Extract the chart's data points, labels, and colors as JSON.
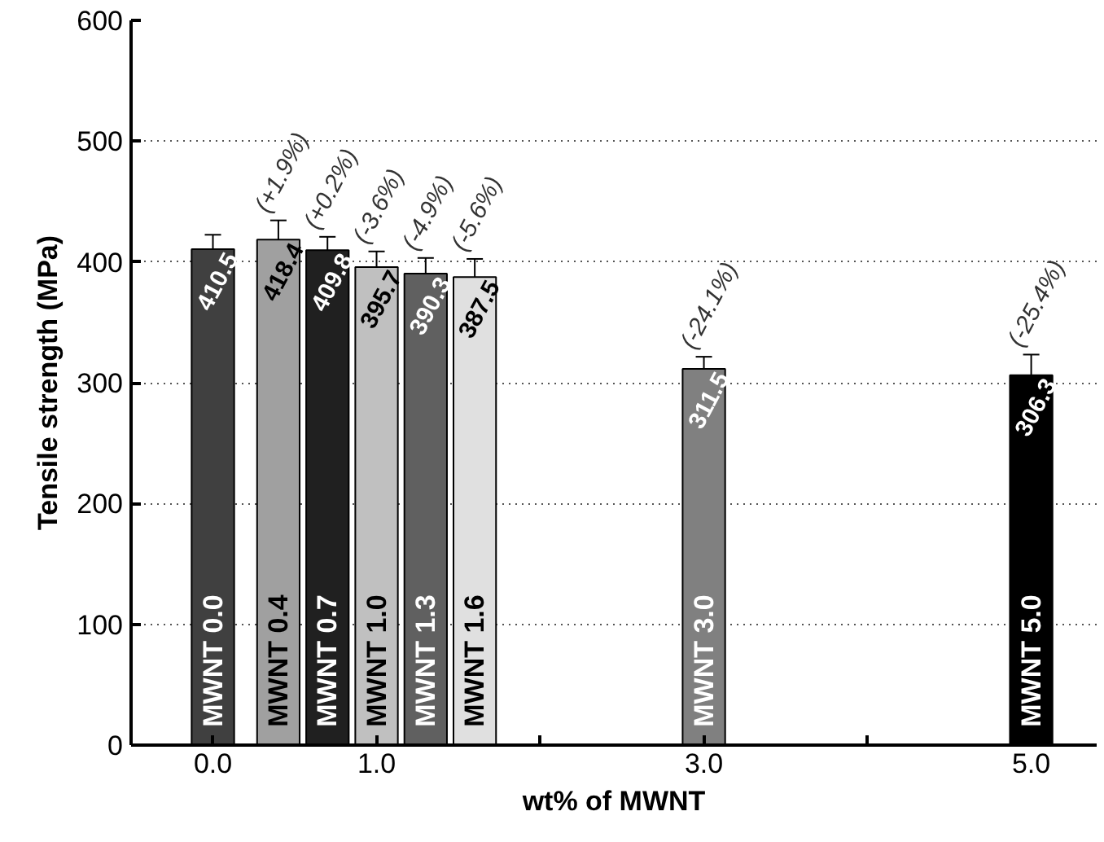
{
  "chart_data": {
    "type": "bar",
    "xlabel": "wt% of MWNT",
    "ylabel": "Tensile strength (MPa)",
    "x": [
      0.0,
      0.4,
      0.7,
      1.0,
      1.3,
      1.6,
      3.0,
      5.0
    ],
    "values": [
      410.5,
      418.4,
      409.8,
      395.7,
      390.3,
      387.5,
      311.5,
      306.3
    ],
    "errors": [
      12,
      16,
      11,
      13,
      13,
      15,
      10,
      17
    ],
    "colors": [
      "#404040",
      "#a0a0a0",
      "#202020",
      "#c0c0c0",
      "#606060",
      "#e0e0e0",
      "#808080",
      "#000000"
    ],
    "data_labels": true,
    "annotations": [
      "MWNT 0.0",
      "MWNT 0.4",
      "MWNT 0.7",
      "MWNT 1.0",
      "MWNT 1.3",
      "MWNT 1.6",
      "MWNT 3.0",
      "MWNT 5.0",
      "(+1.9%)",
      "(+0.2%)",
      "(-3.6%)",
      "(-4.9%)",
      "(-5.6%)",
      "(-24.1%)",
      "(-25.4%)"
    ],
    "xlim": [
      -0.5,
      5.4
    ],
    "ylim": [
      0,
      600
    ],
    "xticks": [
      {
        "value": 0,
        "label": "0.0"
      },
      {
        "value": 1,
        "label": "1.0"
      },
      {
        "value": 2,
        "label": null
      },
      {
        "value": 3,
        "label": "3.0"
      },
      {
        "value": 4,
        "label": null
      },
      {
        "value": 5,
        "label": "5.0"
      }
    ],
    "yticks": [
      0,
      100,
      200,
      300,
      400,
      500,
      600
    ],
    "grid": "y"
  }
}
